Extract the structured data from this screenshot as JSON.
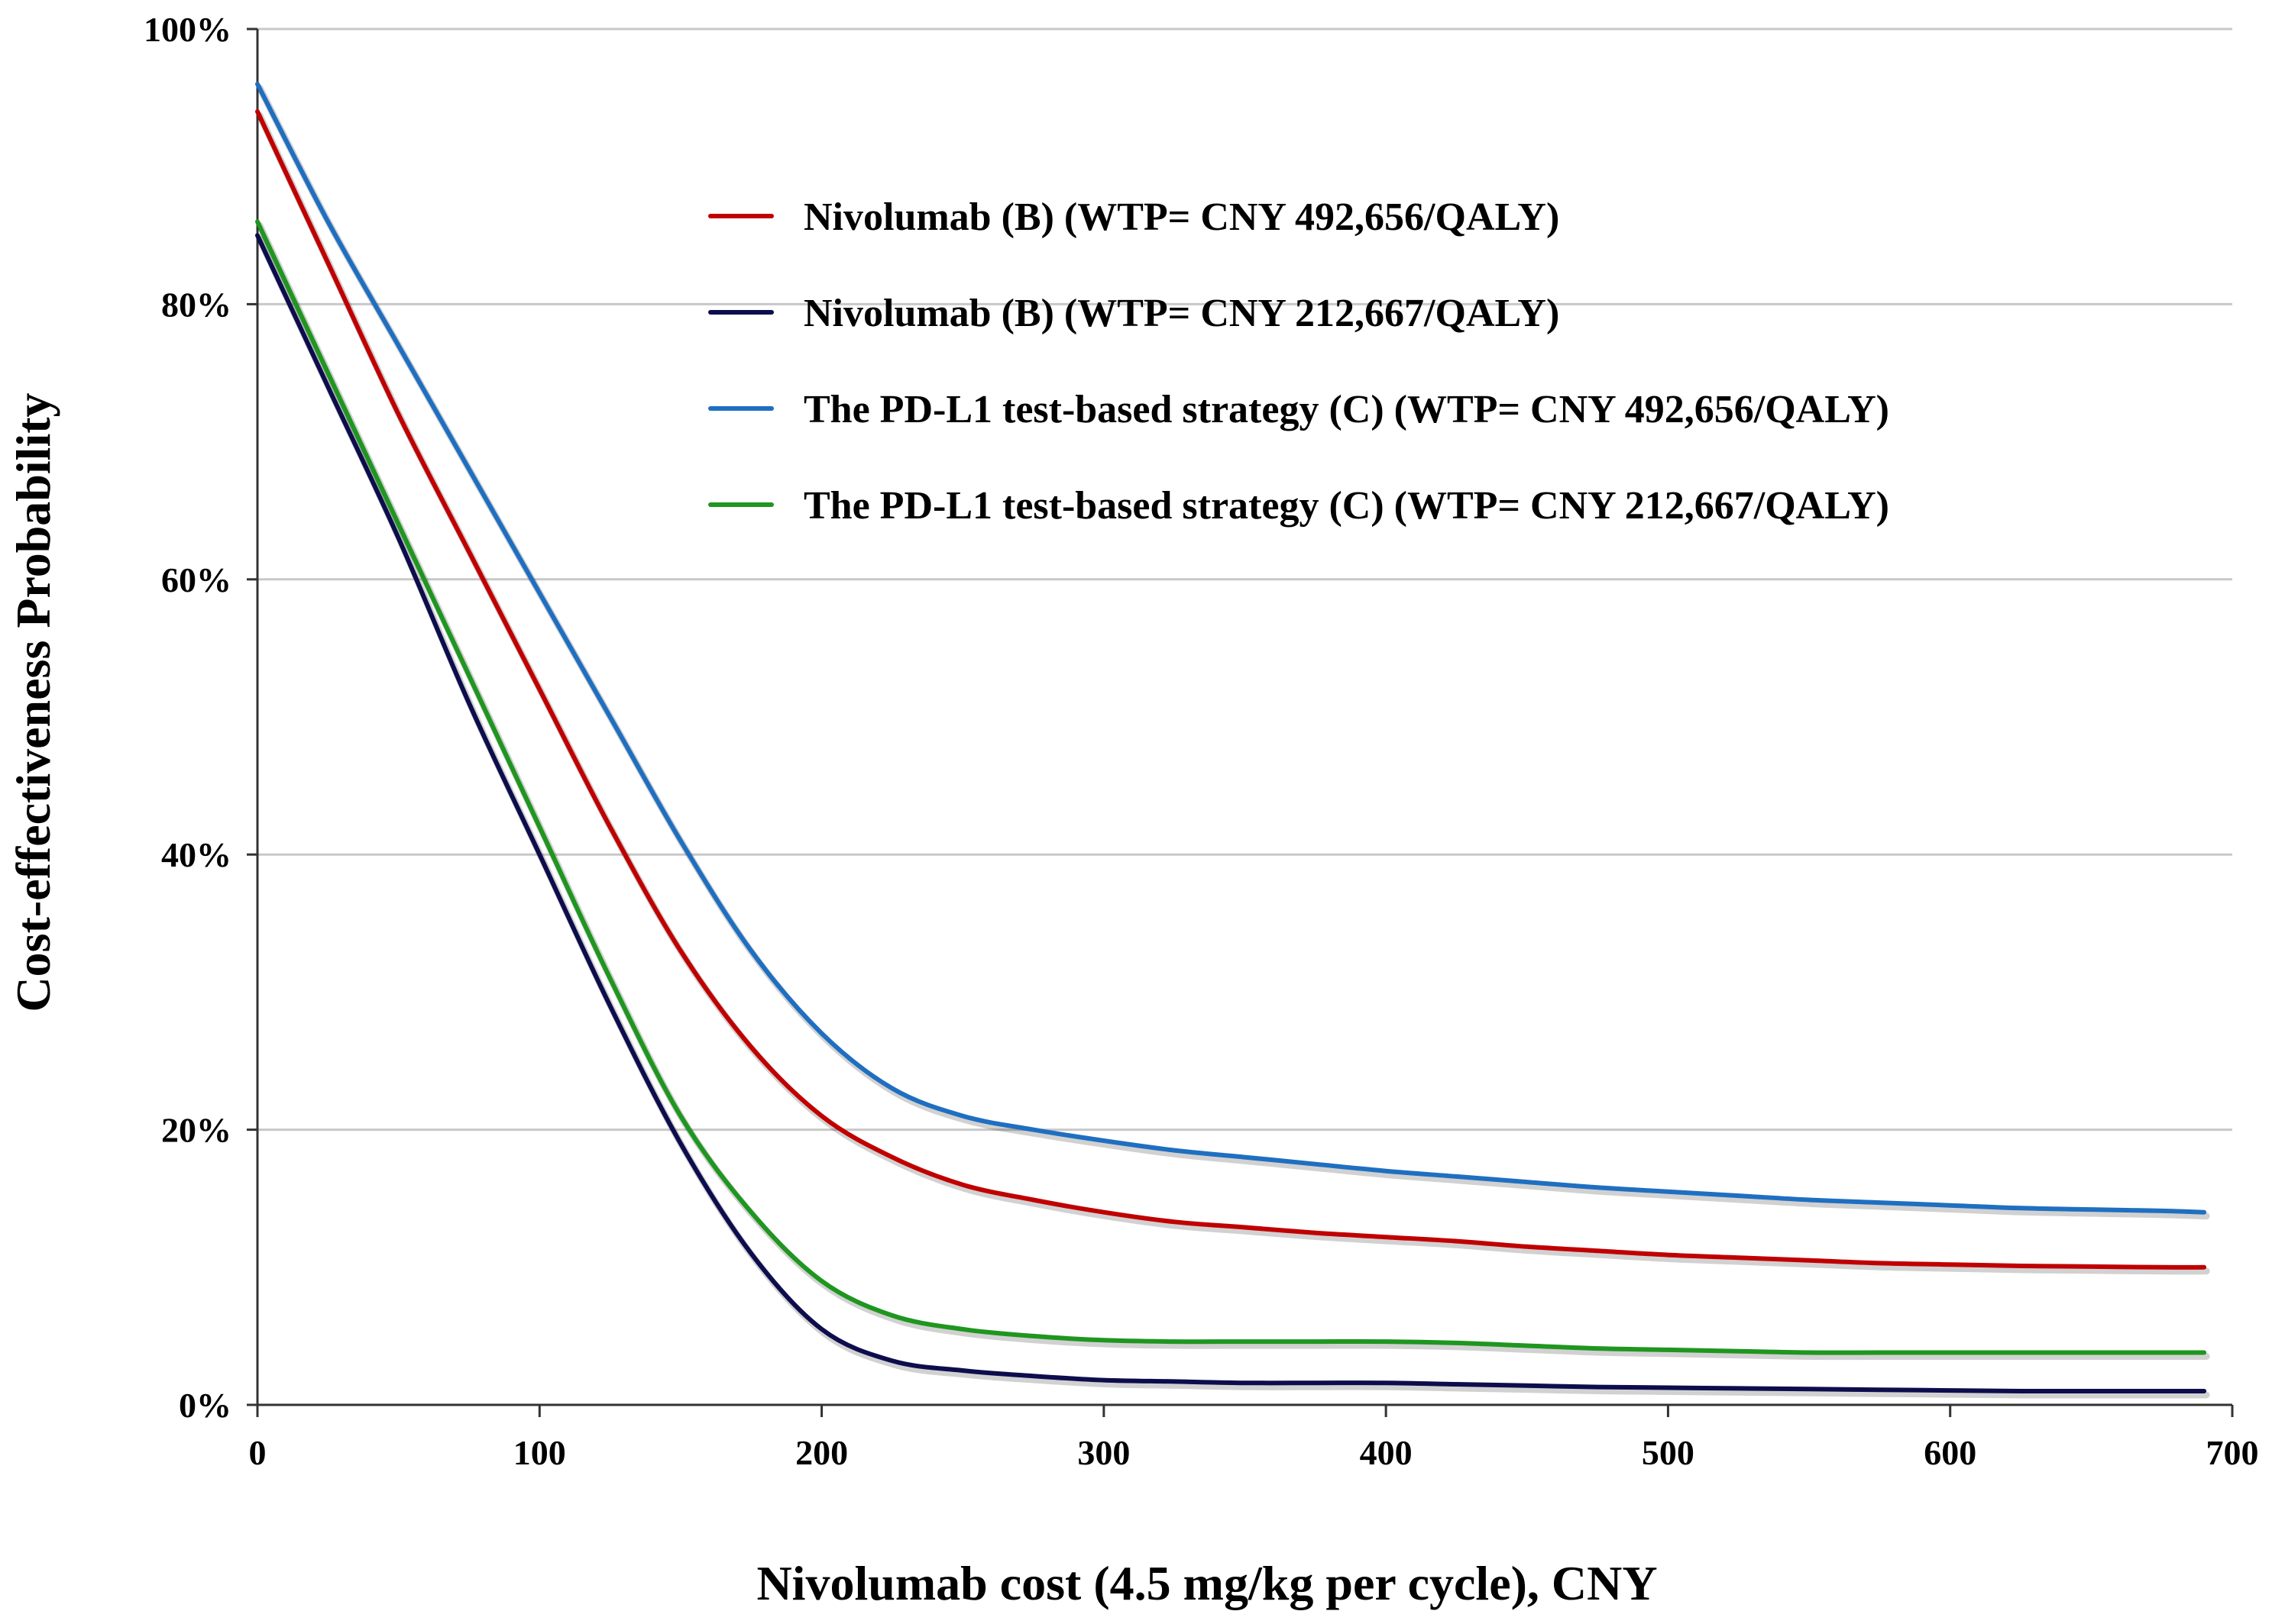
{
  "chart_data": {
    "type": "line",
    "title": "",
    "xlabel": "Nivolumab cost (4.5 mg/kg per cycle), CNY",
    "ylabel": "Cost-effectiveness Probability",
    "xlim": [
      0,
      700
    ],
    "ylim": [
      0,
      100
    ],
    "xticks": [
      0,
      100,
      200,
      300,
      400,
      500,
      600,
      700
    ],
    "xtick_labels": [
      "0",
      "100",
      "200",
      "300",
      "400",
      "500",
      "600",
      "700"
    ],
    "yticks": [
      0,
      20,
      40,
      60,
      80,
      100
    ],
    "ytick_labels": [
      "0%",
      "20%",
      "40%",
      "60%",
      "80%",
      "100%"
    ],
    "grid": "horizontal",
    "legend_position": "top-right",
    "x": [
      0,
      25,
      50,
      75,
      100,
      125,
      150,
      175,
      200,
      225,
      250,
      275,
      300,
      325,
      350,
      375,
      400,
      425,
      450,
      475,
      500,
      525,
      550,
      575,
      600,
      625,
      650,
      675,
      690
    ],
    "series": [
      {
        "name": "Nivolumab (B) (WTP= CNY 492,656/QALY)",
        "color": "#c00000",
        "values": [
          94,
          83,
          72,
          62,
          52,
          42,
          33,
          26,
          21,
          18,
          16,
          14.9,
          14,
          13.3,
          12.9,
          12.5,
          12.2,
          11.9,
          11.5,
          11.2,
          10.9,
          10.7,
          10.5,
          10.3,
          10.2,
          10.1,
          10.05,
          10.0,
          10.0
        ]
      },
      {
        "name": "Nivolumab (B) (WTP= CNY 212,667/QALY)",
        "color": "#0d0d4d",
        "values": [
          85,
          74,
          63,
          51,
          40,
          29,
          19,
          11,
          5.5,
          3.2,
          2.5,
          2.1,
          1.8,
          1.7,
          1.6,
          1.6,
          1.6,
          1.5,
          1.4,
          1.3,
          1.25,
          1.2,
          1.15,
          1.1,
          1.05,
          1.0,
          1.0,
          1.0,
          1.0
        ]
      },
      {
        "name": "The PD-L1 test-based strategy (C) (WTP= CNY 492,656/QALY)",
        "color": "#1f6fc1",
        "values": [
          96,
          86,
          77,
          68,
          59,
          50,
          41,
          33,
          27,
          23,
          21,
          20,
          19.2,
          18.5,
          18,
          17.5,
          17,
          16.6,
          16.2,
          15.8,
          15.5,
          15.2,
          14.9,
          14.7,
          14.5,
          14.3,
          14.2,
          14.1,
          14.0
        ]
      },
      {
        "name": "The PD-L1 test-based strategy (C) (WTP= CNY 212,667/QALY)",
        "color": "#1f961f",
        "values": [
          86,
          75,
          64,
          53,
          42,
          31,
          21,
          14,
          9,
          6.5,
          5.5,
          5.0,
          4.7,
          4.6,
          4.6,
          4.6,
          4.6,
          4.5,
          4.3,
          4.1,
          4.0,
          3.9,
          3.8,
          3.8,
          3.8,
          3.8,
          3.8,
          3.8,
          3.8
        ]
      }
    ]
  }
}
